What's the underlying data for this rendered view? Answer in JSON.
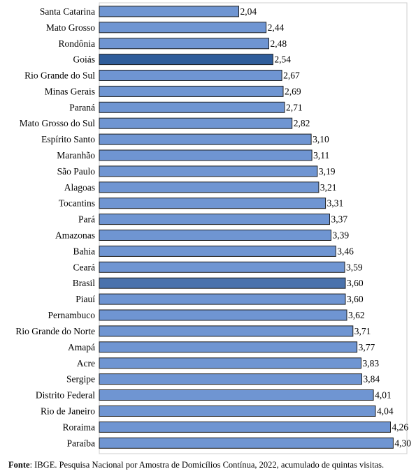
{
  "chart_data": {
    "type": "bar",
    "orientation": "horizontal",
    "categories": [
      "Santa Catarina",
      "Mato Grosso",
      "Rondônia",
      "Goiás",
      "Rio Grande do Sul",
      "Minas Gerais",
      "Paraná",
      "Mato Grosso do Sul",
      "Espírito Santo",
      "Maranhão",
      "São Paulo",
      "Alagoas",
      "Tocantins",
      "Pará",
      "Amazonas",
      "Bahia",
      "Ceará",
      "Brasil",
      "Piauí",
      "Pernambuco",
      "Rio Grande do Norte",
      "Amapá",
      "Acre",
      "Sergipe",
      "Distrito Federal",
      "Rio de Janeiro",
      "Roraima",
      "Paraíba"
    ],
    "values": [
      2.04,
      2.44,
      2.48,
      2.54,
      2.67,
      2.69,
      2.71,
      2.82,
      3.1,
      3.11,
      3.19,
      3.21,
      3.31,
      3.37,
      3.39,
      3.46,
      3.59,
      3.6,
      3.6,
      3.62,
      3.71,
      3.77,
      3.83,
      3.84,
      4.01,
      4.04,
      4.26,
      4.3
    ],
    "value_labels": [
      "2,04",
      "2,44",
      "2,48",
      "2,54",
      "2,67",
      "2,69",
      "2,71",
      "2,82",
      "3,10",
      "3,11",
      "3,19",
      "3,21",
      "3,31",
      "3,37",
      "3,39",
      "3,46",
      "3,59",
      "3,60",
      "3,60",
      "3,62",
      "3,71",
      "3,77",
      "3,83",
      "3,84",
      "4,01",
      "4,04",
      "4,26",
      "4,30"
    ],
    "highlight": {
      "Goiás": "#2f5d9b",
      "Brasil": "#4a72ac"
    },
    "bar_color": "#6f95d2",
    "title": "",
    "xlabel": "",
    "ylabel": "",
    "xlim": [
      0,
      4.5
    ],
    "grid": false,
    "legend": "none"
  },
  "source": {
    "label": "Fonte",
    "text": ": IBGE. Pesquisa Nacional por Amostra de Domicílios Contínua, 2022, acumulado de quintas visitas."
  }
}
